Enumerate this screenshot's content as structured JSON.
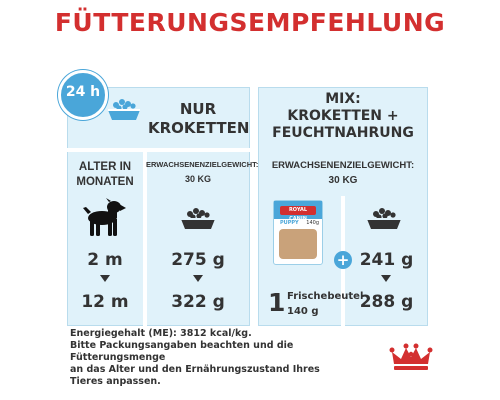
{
  "title": "FÜTTERUNGSEMPFEHLUNG",
  "clock": {
    "label": "24 h",
    "icon": "clock-icon"
  },
  "left_panel": {
    "header_line1": "NUR",
    "header_line2": "KROKETTEN",
    "age_header_line1": "ALTER IN",
    "age_header_line2": "MONATEN",
    "weight_header": "ERWACHSENENZIELGEWICHT:",
    "weight_value": "30 KG",
    "rows": [
      {
        "age": "2 m",
        "amount": "275 g"
      },
      {
        "age": "12 m",
        "amount": "322 g"
      }
    ],
    "icons": [
      "bowl-icon",
      "puppy-dog-icon"
    ]
  },
  "right_panel": {
    "header_line1": "MIX:",
    "header_line2": "KROKETTEN +",
    "header_line3": "FEUCHTNAHRUNG",
    "weight_header": "ERWACHSENENZIELGEWICHT:",
    "weight_value": "30 KG",
    "pouch_count": "1",
    "pouch_label": "Frischebeutel",
    "pouch_weight": "140 g",
    "pouch_brand": "ROYAL CANIN",
    "pouch_product": "PUPPY",
    "pouch_size": "140g",
    "plus": "+",
    "rows": [
      {
        "amount": "241 g"
      },
      {
        "amount": "288 g"
      }
    ]
  },
  "footer": {
    "line1": "Energiegehalt (ME): 3812 kcal/kg.",
    "line2": "Bitte Packungsangaben beachten und die",
    "line3": "Fütterungsmenge",
    "line4": "an das Alter und den Ernährungszustand Ihres",
    "line5": "Tieres anpassen."
  },
  "brand": {
    "logo": "royal-canin-crown-logo",
    "color": "#d32f2f"
  },
  "colors": {
    "accent_blue": "#4aa6d9",
    "panel_bg": "#e0f2fa",
    "title_red": "#d32f2f"
  }
}
